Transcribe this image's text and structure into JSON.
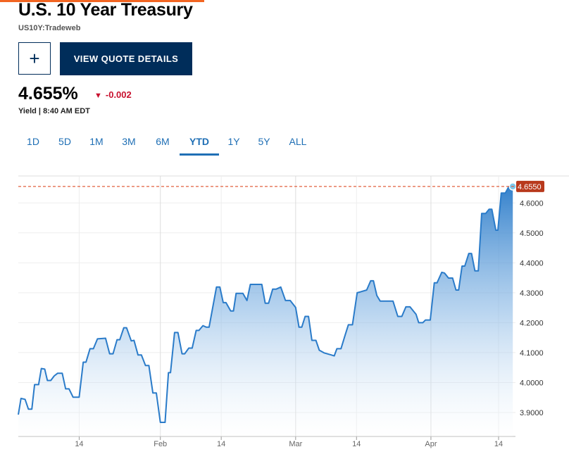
{
  "header": {
    "title": "U.S. 10 Year Treasury",
    "symbol": "US10Y:Tradeweb",
    "plus_button": "+",
    "quote_button": "VIEW QUOTE DETAILS"
  },
  "quote": {
    "price": "4.655%",
    "change": "-0.002",
    "meta": "Yield | 8:40 AM EDT"
  },
  "tabs": {
    "items": [
      "1D",
      "5D",
      "1M",
      "3M",
      "6M",
      "YTD",
      "1Y",
      "5Y",
      "ALL"
    ],
    "active": 5
  },
  "chart_data": {
    "type": "line",
    "color": "#2a7bc9",
    "fill": true,
    "x": [
      0,
      0.4,
      1.0,
      1.5,
      2.0,
      2.4,
      3.0,
      3.4,
      3.9,
      4.3,
      4.8,
      5.3,
      5.8,
      6.5,
      7.0,
      7.5,
      8.1,
      9.0,
      9.6,
      10.0,
      10.6,
      11.1,
      11.7,
      12.9,
      13.5,
      14.0,
      14.6,
      15.0,
      15.6,
      16.0,
      16.7,
      17.1,
      17.7,
      18.2,
      18.8,
      19.3,
      19.9,
      20.4,
      21.0,
      21.7,
      22.2,
      22.5,
      23.1,
      23.6,
      24.2,
      24.6,
      25.2,
      25.7,
      26.3,
      26.7,
      27.3,
      27.8,
      28.2,
      29.3,
      29.8,
      30.3,
      30.7,
      31.4,
      31.8,
      32.2,
      33.2,
      33.8,
      34.3,
      36.0,
      36.5,
      37.0,
      37.6,
      38.1,
      38.8,
      39.5,
      40.2,
      41.0,
      41.5,
      41.9,
      42.4,
      42.9,
      43.4,
      44.0,
      44.5,
      45.2,
      46.3,
      46.7,
      47.1,
      47.7,
      48.3,
      48.8,
      49.4,
      50.1,
      50.6,
      51.5,
      52.1,
      52.5,
      53.0,
      53.5,
      55.4,
      56.1,
      56.7,
      57.3,
      57.9,
      58.8,
      59.2,
      59.8,
      60.2,
      60.9,
      61.5,
      61.9,
      62.6,
      63.0,
      63.6,
      64.2,
      64.7,
      65.1,
      65.6,
      66.0,
      66.6,
      67.0,
      67.5,
      68.0,
      68.5,
      69.1,
      69.6,
      70.0,
      70.6,
      70.9,
      71.4,
      72.0,
      72.5,
      73.1
    ],
    "values": [
      3.893,
      3.947,
      3.944,
      3.911,
      3.911,
      3.993,
      3.993,
      4.047,
      4.045,
      4.007,
      4.007,
      4.022,
      4.031,
      4.031,
      3.979,
      3.979,
      3.951,
      3.951,
      4.068,
      4.068,
      4.113,
      4.113,
      4.146,
      4.148,
      4.096,
      4.096,
      4.143,
      4.143,
      4.183,
      4.183,
      4.139,
      4.141,
      4.092,
      4.092,
      4.057,
      4.057,
      3.965,
      3.965,
      3.867,
      3.867,
      4.033,
      4.033,
      4.167,
      4.167,
      4.096,
      4.096,
      4.115,
      4.115,
      4.174,
      4.174,
      4.19,
      4.185,
      4.185,
      4.319,
      4.319,
      4.267,
      4.267,
      4.239,
      4.239,
      4.298,
      4.298,
      4.274,
      4.328,
      4.328,
      4.265,
      4.265,
      4.312,
      4.312,
      4.319,
      4.274,
      4.274,
      4.251,
      4.185,
      4.185,
      4.221,
      4.221,
      4.141,
      4.141,
      4.108,
      4.099,
      4.092,
      4.089,
      4.113,
      4.113,
      4.157,
      4.193,
      4.193,
      4.3,
      4.303,
      4.309,
      4.34,
      4.34,
      4.291,
      4.272,
      4.272,
      4.221,
      4.221,
      4.253,
      4.253,
      4.228,
      4.2,
      4.2,
      4.209,
      4.209,
      4.333,
      4.333,
      4.368,
      4.366,
      4.349,
      4.349,
      4.309,
      4.309,
      4.389,
      4.389,
      4.431,
      4.431,
      4.373,
      4.373,
      4.565,
      4.565,
      4.579,
      4.579,
      4.509,
      4.509,
      4.633,
      4.633,
      4.654,
      4.655
    ],
    "xlim": [
      0,
      73.5
    ],
    "ylim": [
      3.82,
      4.69
    ],
    "xticks": [
      {
        "value": 9,
        "label": "14"
      },
      {
        "value": 21,
        "label": "Feb"
      },
      {
        "value": 30,
        "label": "14"
      },
      {
        "value": 41,
        "label": "Mar"
      },
      {
        "value": 50,
        "label": "14"
      },
      {
        "value": 61,
        "label": "Apr"
      },
      {
        "value": 71,
        "label": "14"
      }
    ],
    "yticks": [
      {
        "value": 3.9,
        "label": "3.9000"
      },
      {
        "value": 4.0,
        "label": "4.0000"
      },
      {
        "value": 4.1,
        "label": "4.1000"
      },
      {
        "value": 4.2,
        "label": "4.2000"
      },
      {
        "value": 4.3,
        "label": "4.3000"
      },
      {
        "value": 4.4,
        "label": "4.4000"
      },
      {
        "value": 4.5,
        "label": "4.5000"
      },
      {
        "value": 4.6,
        "label": "4.6000"
      }
    ],
    "current": {
      "value": 4.655,
      "label": "4.6550",
      "color": "#e0603f"
    },
    "grid": true
  }
}
